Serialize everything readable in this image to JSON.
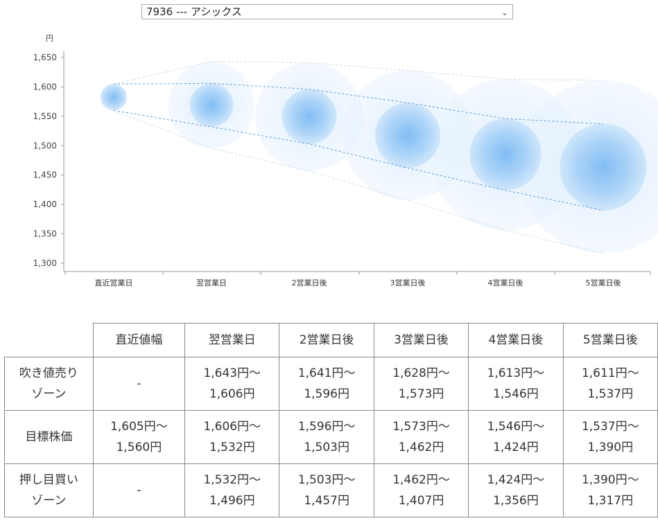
{
  "selector": {
    "value": "7936 --- アシックス"
  },
  "chart_data": {
    "type": "bubble-band",
    "unit_label": "円",
    "y_ticks": [
      1300,
      1350,
      1400,
      1450,
      1500,
      1550,
      1600,
      1650
    ],
    "y_tick_labels": [
      "1,300",
      "1,350",
      "1,400",
      "1,450",
      "1,500",
      "1,550",
      "1,600",
      "1,650"
    ],
    "ylim": [
      1300,
      1650
    ],
    "categories": [
      "直近営業日",
      "翌営業日",
      "2営業日後",
      "3営業日後",
      "4営業日後",
      "5営業日後"
    ],
    "target_band": [
      {
        "low": 1560,
        "high": 1605
      },
      {
        "low": 1532,
        "high": 1606
      },
      {
        "low": 1503,
        "high": 1596
      },
      {
        "low": 1462,
        "high": 1573
      },
      {
        "low": 1424,
        "high": 1546
      },
      {
        "low": 1390,
        "high": 1537
      }
    ],
    "outer_band": [
      {
        "low": 1560,
        "high": 1605
      },
      {
        "low": 1496,
        "high": 1643
      },
      {
        "low": 1457,
        "high": 1641
      },
      {
        "low": 1407,
        "high": 1628
      },
      {
        "low": 1356,
        "high": 1613
      },
      {
        "low": 1317,
        "high": 1611
      }
    ],
    "colors": {
      "bubble": "#6aaff0",
      "line": "#5b9bd5",
      "outer_line": "#c8d4e0",
      "axis": "#999999"
    }
  },
  "table": {
    "headers": [
      "直近値幅",
      "翌営業日",
      "2営業日後",
      "3営業日後",
      "4営業日後",
      "5営業日後"
    ],
    "rows": [
      {
        "label": [
          "吹き値売り",
          "ゾーン"
        ],
        "cells": [
          [
            "-"
          ],
          [
            "1,643円〜",
            "1,606円"
          ],
          [
            "1,641円〜",
            "1,596円"
          ],
          [
            "1,628円〜",
            "1,573円"
          ],
          [
            "1,613円〜",
            "1,546円"
          ],
          [
            "1,611円〜",
            "1,537円"
          ]
        ]
      },
      {
        "label": [
          "目標株価"
        ],
        "cells": [
          [
            "1,605円〜",
            "1,560円"
          ],
          [
            "1,606円〜",
            "1,532円"
          ],
          [
            "1,596円〜",
            "1,503円"
          ],
          [
            "1,573円〜",
            "1,462円"
          ],
          [
            "1,546円〜",
            "1,424円"
          ],
          [
            "1,537円〜",
            "1,390円"
          ]
        ]
      },
      {
        "label": [
          "押し目買い",
          "ゾーン"
        ],
        "cells": [
          [
            "-"
          ],
          [
            "1,532円〜",
            "1,496円"
          ],
          [
            "1,503円〜",
            "1,457円"
          ],
          [
            "1,462円〜",
            "1,407円"
          ],
          [
            "1,424円〜",
            "1,356円"
          ],
          [
            "1,390円〜",
            "1,317円"
          ]
        ]
      }
    ]
  }
}
